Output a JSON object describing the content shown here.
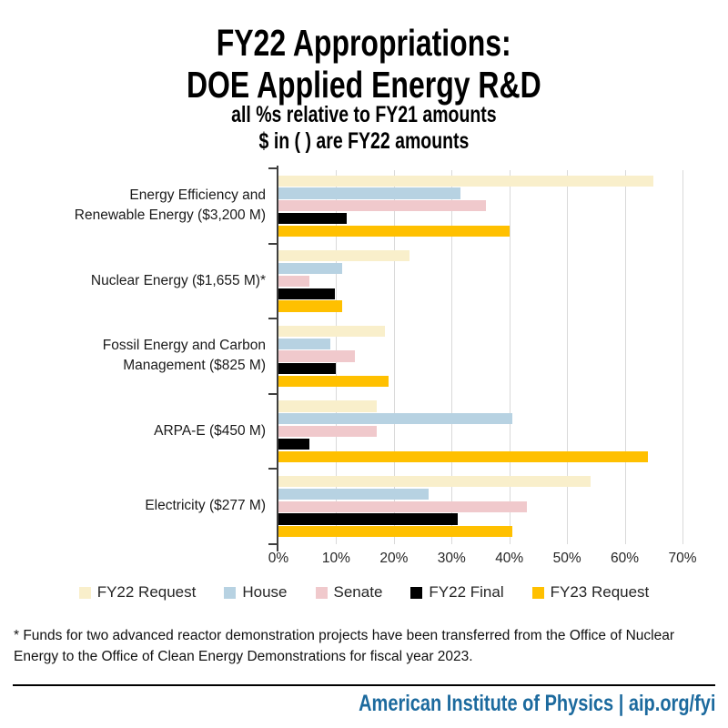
{
  "header": {
    "title_line1": "FY22 Appropriations:",
    "title_line2": "DOE Applied Energy R&D",
    "subtitle_line1": "all %s relative to FY21 amounts",
    "subtitle_line2": "$ in ( ) are FY22 amounts"
  },
  "chart_data": {
    "type": "bar",
    "orientation": "horizontal",
    "title": "FY22 Appropriations: DOE Applied Energy R&D",
    "subtitle": "all %s relative to FY21 amounts; $ in ( ) are FY22 amounts",
    "categories": [
      "Energy Efficiency and Renewable Energy ($3,200 M)",
      "Nuclear Energy ($1,655 M)*",
      "Fossil Energy and Carbon Management ($825 M)",
      "ARPA-E ($450 M)",
      "Electricity ($277 M)"
    ],
    "category_label_lines": [
      [
        "Energy Efficiency and",
        "Renewable Energy ($3,200 M)"
      ],
      [
        "Nuclear Energy ($1,655 M)*"
      ],
      [
        "Fossil Energy and Carbon",
        "Management ($825 M)"
      ],
      [
        "ARPA-E ($450 M)"
      ],
      [
        "Electricity ($277 M)"
      ]
    ],
    "series": [
      {
        "name": "FY22 Request",
        "color": "#F9EFCB",
        "values": [
          65,
          22.7,
          18.5,
          17,
          54
        ]
      },
      {
        "name": "House",
        "color": "#B7D2E2",
        "values": [
          31.5,
          11,
          9,
          40.5,
          26
        ]
      },
      {
        "name": "Senate",
        "color": "#F0C9CC",
        "values": [
          36,
          5.4,
          13.3,
          17,
          43
        ]
      },
      {
        "name": "FY22 Final",
        "color": "#000000",
        "values": [
          11.8,
          9.7,
          10,
          5.4,
          31
        ]
      },
      {
        "name": "FY23 Request",
        "color": "#FFC000",
        "values": [
          40,
          11,
          19,
          64,
          40.5
        ]
      }
    ],
    "xlim": [
      0,
      70
    ],
    "x_tick_step": 10,
    "x_tick_labels": [
      "0%",
      "10%",
      "20%",
      "30%",
      "40%",
      "50%",
      "60%",
      "70%"
    ],
    "unit": "percent change vs FY21",
    "grid": true,
    "gridline_color": "#d9d9d9",
    "legend_position": "bottom"
  },
  "footnote": {
    "text": "* Funds for two advanced reactor demonstration projects have been transferred from the Office of Nuclear Energy to the Office of Clean Energy Demonstrations for fiscal year 2023."
  },
  "footer": {
    "text": "American Institute of Physics | aip.org/fyi",
    "color": "#1C6A9E"
  }
}
